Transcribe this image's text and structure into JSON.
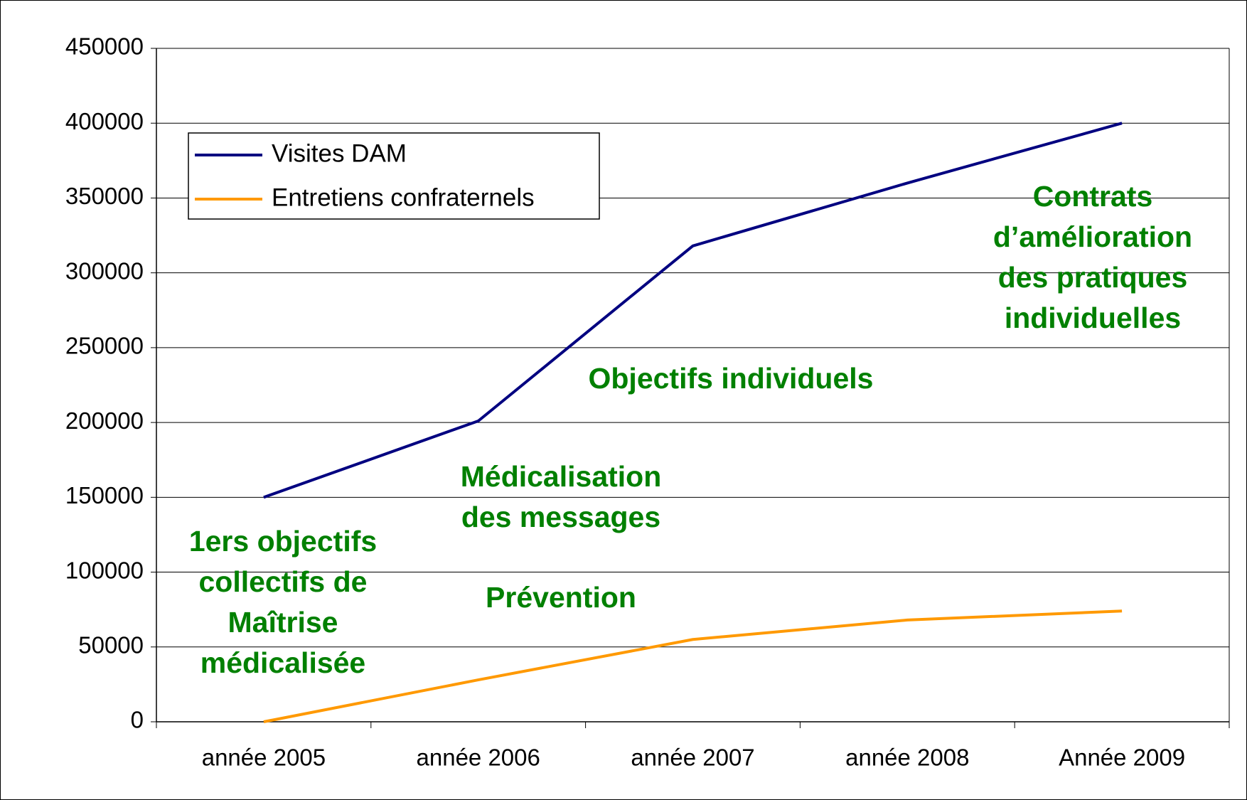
{
  "chart_data": {
    "type": "line",
    "categories": [
      "année 2005",
      "année 2006",
      "année 2007",
      "année 2008",
      "Année 2009"
    ],
    "series": [
      {
        "name": "Visites DAM",
        "color": "#000080",
        "values": [
          150000,
          201000,
          318000,
          360000,
          400000
        ]
      },
      {
        "name": "Entretiens confraternels",
        "color": "#ff9900",
        "values": [
          0,
          28000,
          55000,
          68000,
          74000
        ]
      }
    ],
    "ylim": [
      0,
      450000
    ],
    "yticks": [
      0,
      50000,
      100000,
      150000,
      200000,
      250000,
      300000,
      350000,
      400000,
      450000
    ],
    "grid": true,
    "legend": "upper left",
    "annotations": [
      {
        "lines": [
          "1ers objectifs",
          "collectifs de",
          "Maîtrise",
          "médicalisée"
        ],
        "color": "#008000"
      },
      {
        "lines": [
          "Médicalisation",
          "des messages"
        ],
        "color": "#008000"
      },
      {
        "lines": [
          "Prévention"
        ],
        "color": "#008000"
      },
      {
        "lines": [
          "Objectifs individuels"
        ],
        "color": "#008000"
      },
      {
        "lines": [
          "Contrats",
          "d’amélioration",
          "des pratiques",
          "individuelles"
        ],
        "color": "#008000"
      }
    ]
  }
}
